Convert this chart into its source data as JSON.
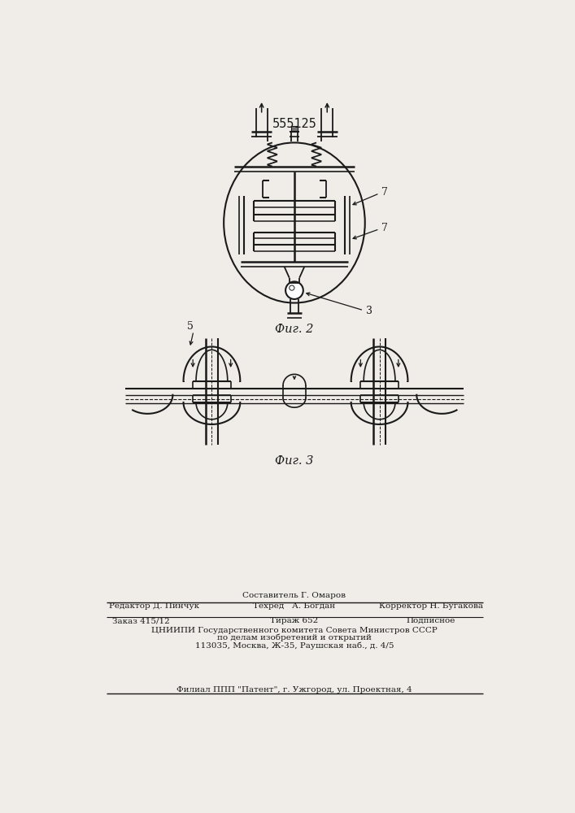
{
  "patent_number": "555125",
  "fig2_caption": "Фиг. 2",
  "fig3_caption": "Фиг. 3",
  "label_7a": "7",
  "label_7b": "7",
  "label_3": "3",
  "label_5": "5",
  "footer_line1": "Составитель Г. Омаров",
  "footer_line2_left": "Редактор Д. Пинчук",
  "footer_line2_mid": "Техред   А. Богдан",
  "footer_line2_right": "Корректор Н. Бугакова",
  "footer_line3_left": "Заказ 415/12",
  "footer_line3_mid": "Тираж 652",
  "footer_line3_right": "Подписное",
  "footer_line4": "ЦНИИПИ Государственного комитета Совета Министров СССР",
  "footer_line5": "по делам изобретений и открытий",
  "footer_line6": "113035, Москва, Ж-35, Раушская наб., д. 4/5",
  "footer_line7": "Филиал ППП \"Патент\", г. Ужгород, ул. Проектная, 4",
  "bg_color": "#f0ede8",
  "line_color": "#1a1a1a"
}
